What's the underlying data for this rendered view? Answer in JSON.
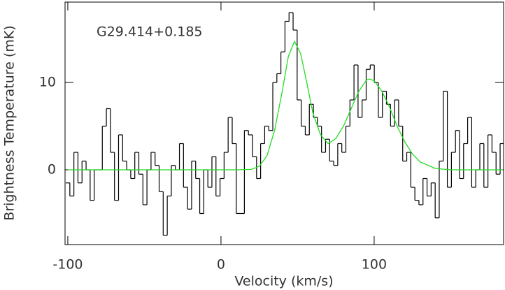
{
  "chart_data": {
    "type": "line",
    "annotation": "G29.414+0.185",
    "xlabel": "Velocity (km/s)",
    "ylabel": "Brightness Temperature (mK)",
    "xlim": [
      -101.8,
      184.5
    ],
    "ylim": [
      -8.56,
      19.2
    ],
    "xticks": [
      -100,
      0,
      100
    ],
    "yticks": [
      0,
      10
    ],
    "series": [
      {
        "color": "#000000",
        "step": true,
        "x": [
          -100,
          -97.35,
          -94.7,
          -92.05,
          -89.4,
          -86.75,
          -84.1,
          -81.45,
          -78.8,
          -76.15,
          -73.5,
          -70.85,
          -68.2,
          -65.55,
          -62.9,
          -60.25,
          -57.6,
          -54.95,
          -52.3,
          -49.65,
          -47,
          -44.35,
          -41.7,
          -39.05,
          -36.4,
          -33.75,
          -31.1,
          -28.45,
          -25.8,
          -23.15,
          -20.5,
          -17.85,
          -15.2,
          -12.55,
          -9.9,
          -7.25,
          -4.6,
          -1.95,
          0.7,
          3.35,
          6,
          8.65,
          11.3,
          13.95,
          16.6,
          19.25,
          21.9,
          24.55,
          27.2,
          29.85,
          32.5,
          35.15,
          37.8,
          40.45,
          43.1,
          45.75,
          48.4,
          51.05,
          53.7,
          56.35,
          59,
          61.65,
          64.3,
          66.95,
          69.6,
          72.25,
          74.9,
          77.55,
          80.2,
          82.85,
          85.5,
          88.15,
          90.8,
          93.45,
          96.1,
          98.75,
          101.4,
          104.05,
          106.7,
          109.35,
          112,
          114.65,
          117.3,
          119.95,
          122.6,
          125.25,
          127.9,
          130.55,
          133.2,
          135.85,
          138.5,
          141.15,
          143.8,
          146.45,
          149.1,
          151.75,
          154.4,
          157.05,
          159.7,
          162.35,
          165,
          167.65,
          170.3,
          172.95,
          175.6,
          178.25,
          180.9,
          183.55
        ],
        "values": [
          -1.5,
          -3,
          2,
          -1.5,
          1,
          0,
          -3.5,
          0,
          0,
          5,
          7,
          2,
          -3.5,
          4,
          1,
          0,
          -1,
          2,
          -0.5,
          -4,
          0,
          2,
          0.5,
          -2.5,
          -7.5,
          -3,
          0.5,
          0,
          3,
          -2,
          -4.5,
          1,
          -1,
          -5,
          0,
          -2,
          1.5,
          -3,
          -1,
          2,
          6,
          3,
          -5,
          -5,
          4.5,
          4,
          1.5,
          -1,
          3,
          5,
          4.5,
          10,
          11,
          13.5,
          17,
          18,
          16,
          8,
          5,
          4,
          7.5,
          6,
          5,
          2,
          3.5,
          1,
          0.5,
          3,
          2,
          5,
          8,
          12,
          6,
          8,
          11.5,
          12,
          10,
          6,
          9,
          7.5,
          5,
          8,
          5,
          1,
          2,
          -2,
          -3.5,
          -4,
          -1,
          -3,
          -1.5,
          -5.5,
          1,
          9,
          -2,
          2,
          4.5,
          -1,
          3,
          6,
          -2,
          0,
          3,
          -2,
          4,
          2,
          -0.5,
          3
        ]
      },
      {
        "color": "#22dd22",
        "step": false,
        "x": [
          -100,
          0,
          10,
          20,
          25,
          30,
          35,
          40,
          44,
          48,
          52,
          56,
          60,
          65,
          70,
          75,
          80,
          85,
          90,
          95,
          97,
          100,
          105,
          110,
          115,
          120,
          125,
          130,
          140,
          150,
          184
        ],
        "values": [
          0,
          0,
          0,
          0.05,
          0.4,
          1.6,
          4.5,
          9,
          13,
          14.7,
          13.3,
          10,
          6.5,
          4,
          3,
          3.6,
          5,
          7,
          9,
          10.3,
          10.4,
          10.2,
          9,
          7.2,
          5,
          3.2,
          1.8,
          0.9,
          0.15,
          0,
          0
        ]
      }
    ]
  }
}
